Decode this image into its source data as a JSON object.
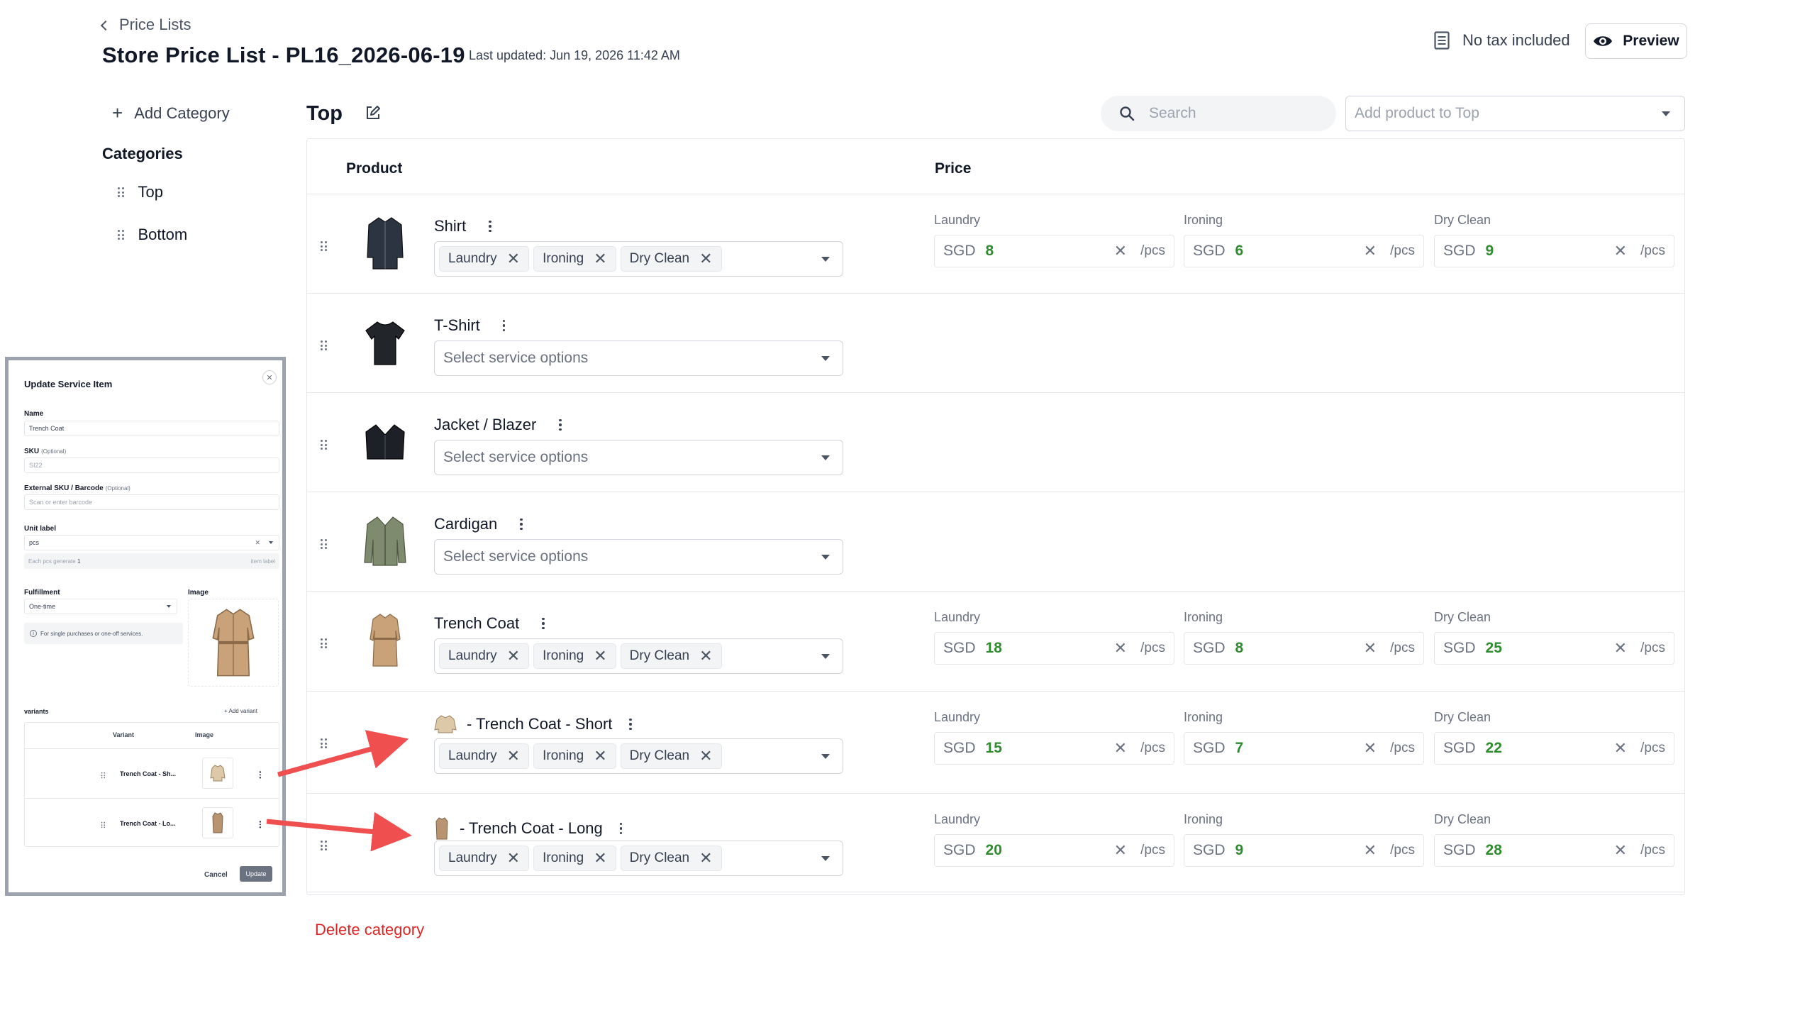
{
  "header": {
    "back_label": "Price Lists",
    "title": "Store Price List - PL16_2026-06-19",
    "last_updated": "Last updated: Jun 19, 2026 11:42 AM",
    "tax_label": "No tax included",
    "preview_label": "Preview"
  },
  "sidebar": {
    "add_category_label": "Add Category",
    "categories_title": "Categories",
    "categories": [
      "Top",
      "Bottom"
    ]
  },
  "category": {
    "title": "Top",
    "search_placeholder": "Search",
    "add_product_placeholder": "Add product to Top",
    "delete_label": "Delete category"
  },
  "table": {
    "headers": {
      "product": "Product",
      "price": "Price"
    },
    "service_placeholder": "Select service options",
    "currency": "SGD",
    "unit": "/pcs",
    "rows": [
      {
        "name": "Shirt",
        "services": [
          "Laundry",
          "Ironing",
          "Dry Clean"
        ],
        "prices": [
          "8",
          "6",
          "9"
        ]
      },
      {
        "name": "T-Shirt",
        "services": [],
        "prices": []
      },
      {
        "name": "Jacket / Blazer",
        "services": [],
        "prices": []
      },
      {
        "name": "Cardigan",
        "services": [],
        "prices": []
      },
      {
        "name": "Trench Coat",
        "services": [
          "Laundry",
          "Ironing",
          "Dry Clean"
        ],
        "prices": [
          "18",
          "8",
          "25"
        ]
      },
      {
        "name": "- Trench Coat - Short",
        "services": [
          "Laundry",
          "Ironing",
          "Dry Clean"
        ],
        "prices": [
          "15",
          "7",
          "22"
        ]
      },
      {
        "name": "- Trench Coat - Long",
        "services": [
          "Laundry",
          "Ironing",
          "Dry Clean"
        ],
        "prices": [
          "20",
          "9",
          "28"
        ]
      }
    ]
  },
  "modal": {
    "title": "Update Service Item",
    "name_label": "Name",
    "name_value": "Trench Coat",
    "sku_label": "SKU",
    "optional": "(Optional)",
    "sku_placeholder": "SI22",
    "ext_sku_label": "External SKU / Barcode",
    "ext_sku_placeholder": "Scan or enter barcode",
    "unit_label": "Unit label",
    "unit_value": "pcs",
    "each_generate": "Each pcs generate",
    "each_value": "1",
    "item_label": "item label",
    "fulfillment_label": "Fulfillment",
    "fulfillment_value": "One-time",
    "image_label": "Image",
    "info_text": "For single purchases or one-off services.",
    "variants_label": "variants",
    "add_variant": "Add variant",
    "variant_col": "Variant",
    "image_col": "Image",
    "variants": [
      "Trench Coat - Sh...",
      "Trench Coat - Lo..."
    ],
    "cancel_label": "Cancel",
    "update_label": "Update"
  },
  "colors": {
    "price_value": "#2e8b2e",
    "danger": "#dc2626",
    "arrow": "#ef4f4f"
  }
}
